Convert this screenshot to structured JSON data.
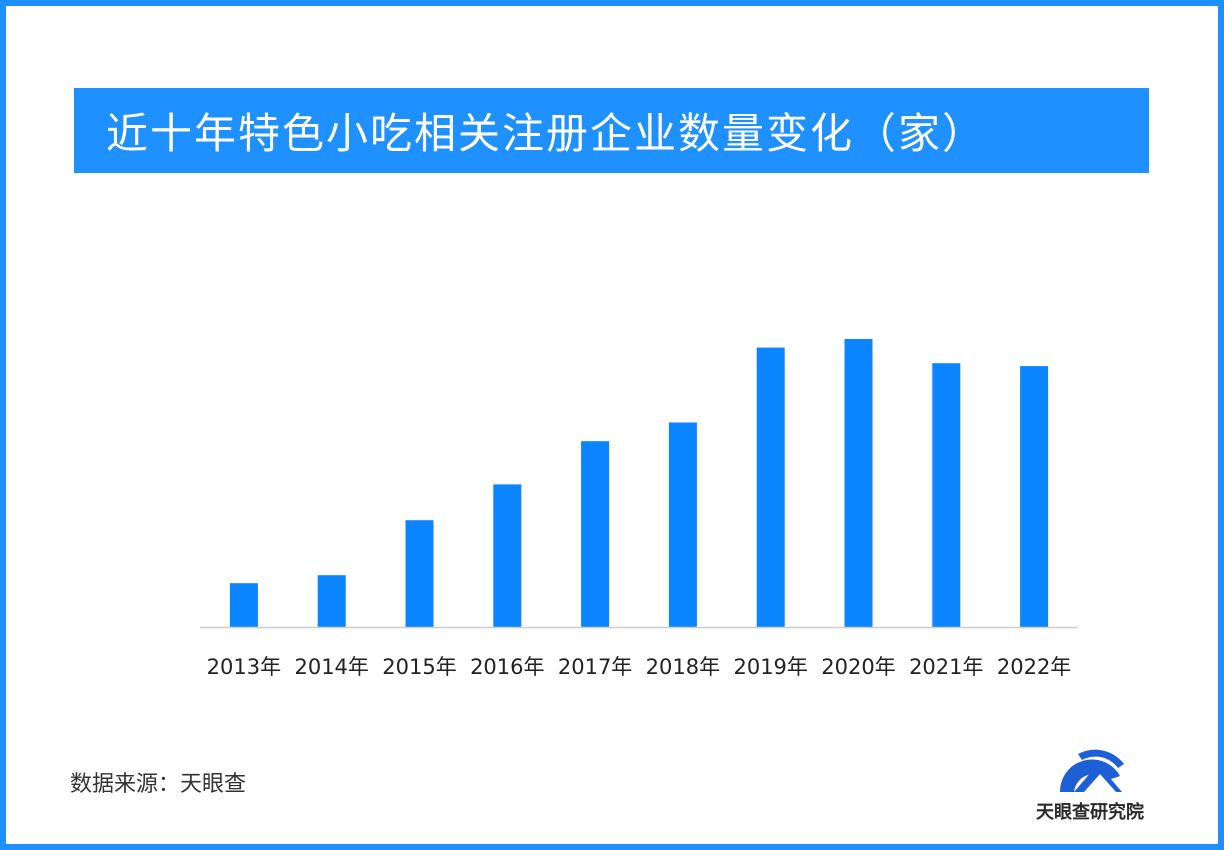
{
  "title": "近十年特色小吃相关注册企业数量变化（家）",
  "source": "数据来源：天眼查",
  "logo": {
    "text": "天眼查研究院",
    "icon": "tianyancha-logo-icon"
  },
  "colors": {
    "accent": "#1E90FF",
    "bar": "#0A84FF",
    "axis": "#cccccc",
    "text": "#222222"
  },
  "chart_data": {
    "type": "bar",
    "categories": [
      "2013年",
      "2014年",
      "2015年",
      "2016年",
      "2017年",
      "2018年",
      "2019年",
      "2020年",
      "2021年",
      "2022年"
    ],
    "values": [
      15.2,
      18.0,
      37.1,
      49.5,
      64.5,
      71.0,
      97.0,
      100.0,
      91.6,
      90.6
    ],
    "ylim": [
      0,
      100
    ],
    "grid": false,
    "legend": "none"
  }
}
